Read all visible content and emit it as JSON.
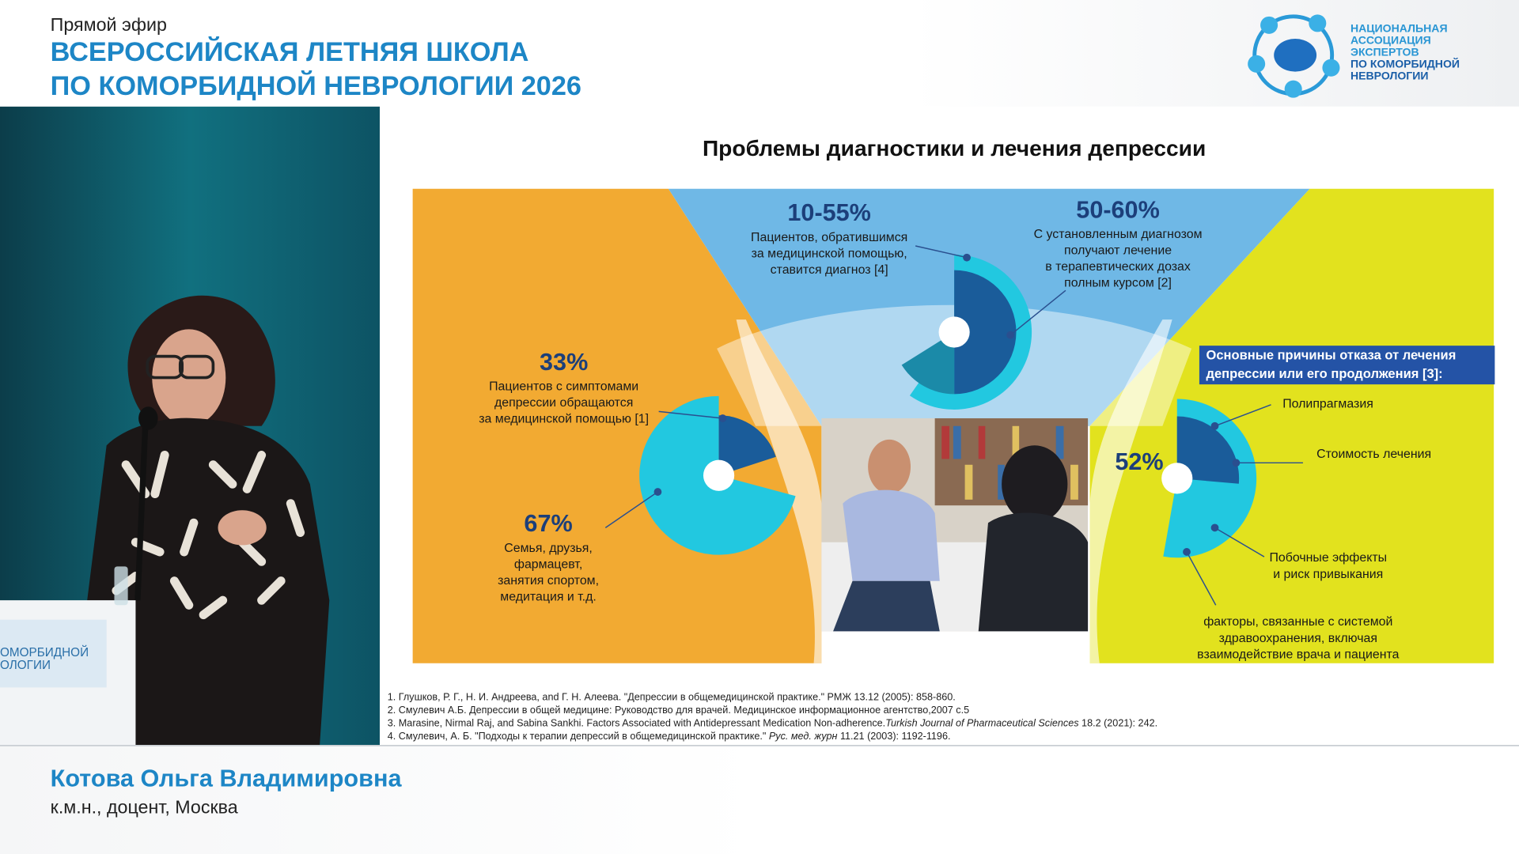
{
  "header": {
    "live": "Прямой эфир",
    "title": [
      "ВСЕРОССИЙСКАЯ ЛЕТНЯЯ ШКОЛА",
      "ПО КОМОРБИДНОЙ НЕВРОЛОГИИ 2026"
    ]
  },
  "logo": {
    "text": [
      "НАЦИОНАЛЬНАЯ",
      "АССОЦИАЦИЯ",
      "ЭКСПЕРТОВ",
      "ПО КОМОРБИДНОЙ",
      "НЕВРОЛОГИИ"
    ]
  },
  "podium": {
    "text": [
      "ОМОРБИДНОЙ",
      "ОЛОГИИ"
    ]
  },
  "slide": {
    "title": "Проблемы диагностики и лечения депрессии",
    "left": {
      "pct_top": "33%",
      "text_top": [
        "Пациентов с симптомами",
        "депрессии обращаются",
        "за медицинской помощью [1]"
      ],
      "pct_bottom": "67%",
      "text_bottom": [
        "Семья, друзья,",
        "фармацевт,",
        "занятия спортом,",
        "медитация и т.д."
      ]
    },
    "center": {
      "pct_left": "10-55%",
      "text_left": [
        "Пациентов, обратившимся",
        "за медицинской помощью,",
        "ставится диагноз [4]"
      ],
      "pct_right": "50-60%",
      "text_right": [
        "С установленным диагнозом",
        "получают лечение",
        "в терапевтических дозах",
        "полным курсом [2]"
      ]
    },
    "right": {
      "heading": [
        "Основные причины отказа от лечения",
        "депрессии или его продолжения [3]:"
      ],
      "pct": "52%",
      "label_1": "Полипрагмазия",
      "label_2": "Стоимость лечения",
      "label_3": [
        "Побочные эффекты",
        "и риск привыкания"
      ],
      "label_4": [
        "факторы, связанные с системой",
        "здравоохранения, включая",
        "взаимодействие врача и пациента"
      ]
    },
    "references": [
      {
        "text": "1. Глушков, Р. Г., Н. И. Андреева, and Г. Н. Алеева. \"Депрессии в общемедицинской практике.\" РМЖ 13.12 (2005): 858-860."
      },
      {
        "text": "2. Смулевич А.Б. Депрессии в общей медицине: Руководство для врачей. Медицинское информационное агентство,2007 с.5"
      },
      {
        "before": "3. Marasine, Nirmal Raj, and Sabina Sankhi. Factors Associated with Antidepressant Medication Non-adherence.",
        "italic": "Turkish Journal of Pharmaceutical Sciences",
        "after": " 18.2 (2021): 242."
      },
      {
        "before": "4. Смулевич, А. Б. \"Подходы к терапии депрессий в общемедицинской практике.\" ",
        "italic": "Рус. мед. журн",
        "after": " 11.21 (2003): 1192-1196."
      }
    ]
  },
  "speaker": {
    "name": "Котова Ольга Владимировна",
    "role": "к.м.н., доцент, Москва"
  }
}
